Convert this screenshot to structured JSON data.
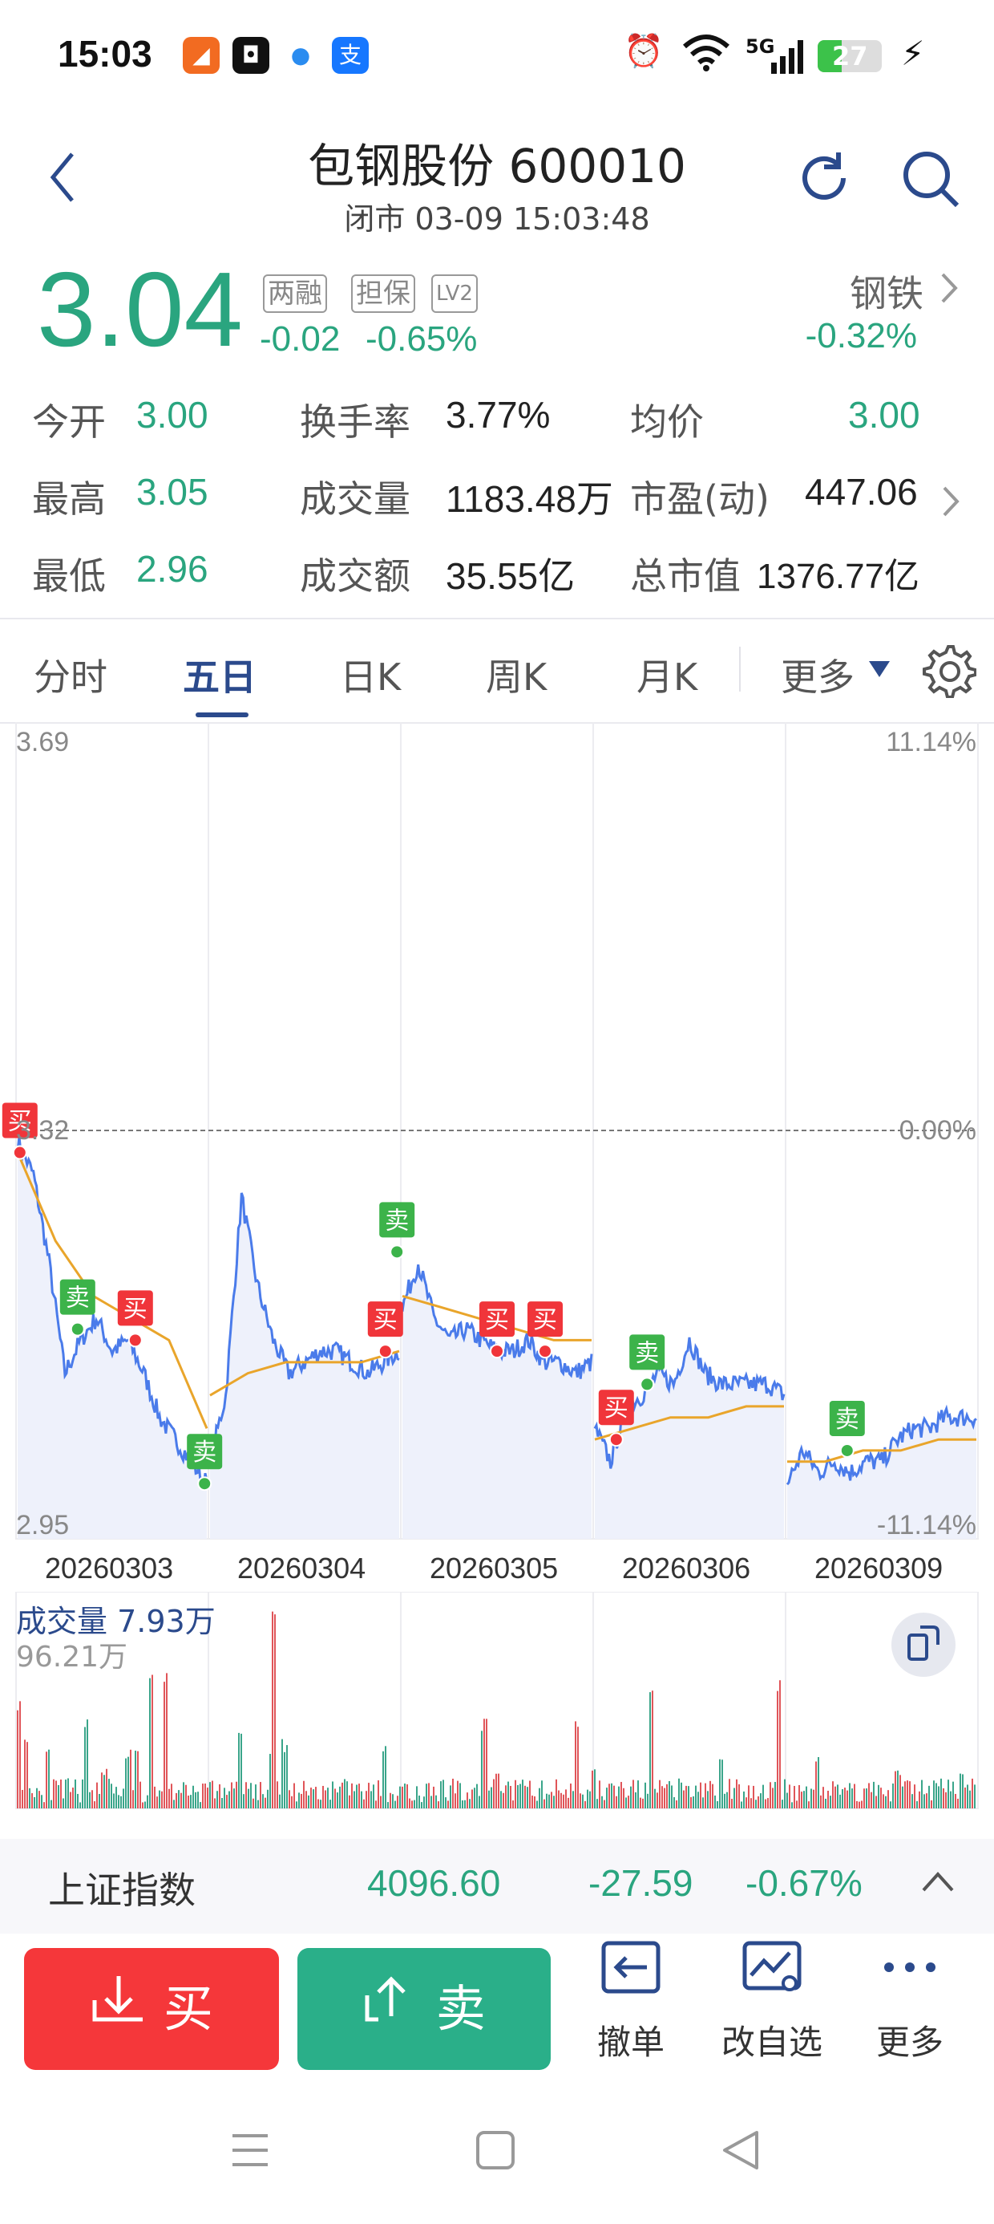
{
  "status_bar": {
    "time": "15:03",
    "apps": [
      "app-icon-1",
      "app-icon-2",
      "app-icon-3",
      "app-icon-alipay"
    ],
    "network": "5G",
    "battery": "27"
  },
  "header": {
    "title": "包钢股份 600010",
    "subtitle": "闭市 03-09 15:03:48"
  },
  "quote": {
    "price": "3.04",
    "tags": [
      "两融",
      "担保",
      "LV2"
    ],
    "change": "-0.02",
    "change_pct": "-0.65%",
    "sector": "钢铁",
    "sector_change": "-0.32%",
    "grid": [
      [
        {
          "label": "今开",
          "value": "3.00"
        },
        {
          "label": "换手率",
          "value": "3.77%"
        },
        {
          "label": "均价",
          "value": "3.00"
        }
      ],
      [
        {
          "label": "最高",
          "value": "3.05"
        },
        {
          "label": "成交量",
          "value": "1183.48万"
        },
        {
          "label": "市盈(动)",
          "value": "447.06"
        }
      ],
      [
        {
          "label": "最低",
          "value": "2.96"
        },
        {
          "label": "成交额",
          "value": "35.55亿"
        },
        {
          "label": "总市值",
          "value": "1376.77亿"
        }
      ]
    ]
  },
  "tabs": [
    "分时",
    "五日",
    "日K",
    "周K",
    "月K",
    "更多"
  ],
  "active_tab": "五日",
  "chart": {
    "y_top": "3.69",
    "y_mid": "3.32",
    "y_bot": "2.95",
    "pct_top": "11.14%",
    "pct_mid": "0.00%",
    "pct_bot": "-11.14%",
    "dates": [
      "20260303",
      "20260304",
      "20260305",
      "20260306",
      "20260309"
    ],
    "signals": [
      {
        "type": "买",
        "day": 0,
        "t": 0.02,
        "price": 3.3
      },
      {
        "type": "卖",
        "day": 0,
        "t": 0.32,
        "price": 3.14
      },
      {
        "type": "买",
        "day": 0,
        "t": 0.62,
        "price": 3.13
      },
      {
        "type": "卖",
        "day": 0,
        "t": 0.98,
        "price": 3.0
      },
      {
        "type": "卖",
        "day": 1,
        "t": 0.98,
        "price": 3.21
      },
      {
        "type": "买",
        "day": 1,
        "t": 0.92,
        "price": 3.12
      },
      {
        "type": "买",
        "day": 2,
        "t": 0.5,
        "price": 3.12
      },
      {
        "type": "买",
        "day": 2,
        "t": 0.75,
        "price": 3.12
      },
      {
        "type": "买",
        "day": 3,
        "t": 0.12,
        "price": 3.04
      },
      {
        "type": "卖",
        "day": 3,
        "t": 0.28,
        "price": 3.09
      },
      {
        "type": "卖",
        "day": 4,
        "t": 0.32,
        "price": 3.03
      }
    ],
    "volume_label": "成交量 7.93万",
    "volume_max": "96.21万"
  },
  "index_bar": {
    "name": "上证指数",
    "value": "4096.60",
    "change": "-27.59",
    "change_pct": "-0.67%"
  },
  "bottom": {
    "buy": "买",
    "sell": "卖",
    "tools": [
      "撤单",
      "改自选",
      "更多"
    ]
  }
}
